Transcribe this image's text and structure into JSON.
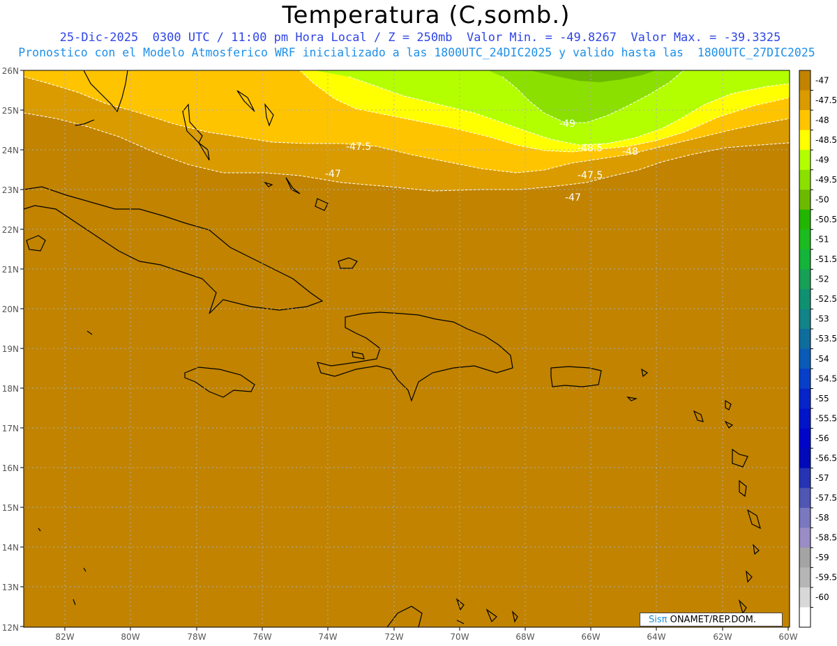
{
  "title": "Temperatura (C,somb.)",
  "subtitle_line1": "25-Dic-2025  0300 UTC / 11:00 pm Hora Local / Z = 250mb  Valor Min. = -49.8267  Valor Max. = -39.3325",
  "subtitle_line2": "Pronostico con el Modelo Atmosferico WRF inicializado a las 1800UTC_24DIC2025 y valido hasta las  1800UTC_27DIC2025",
  "map": {
    "lon_range": [
      -83,
      -60
    ],
    "lat_range": [
      12,
      26
    ],
    "lon_ticks": [
      "82W",
      "80W",
      "78W",
      "76W",
      "74W",
      "72W",
      "70W",
      "68W",
      "66W",
      "64W",
      "62W",
      "60W"
    ],
    "lat_ticks": [
      "12N",
      "13N",
      "14N",
      "15N",
      "16N",
      "17N",
      "18N",
      "19N",
      "20N",
      "21N",
      "22N",
      "23N",
      "24N",
      "25N",
      "26N"
    ],
    "contour_labels": [
      "-47.5",
      "-47",
      "-49",
      "-48.5",
      "-48",
      "-47.5",
      "-47"
    ]
  },
  "legend": {
    "labels": [
      "-47",
      "-47.5",
      "-48",
      "-48.5",
      "-49",
      "-49.5",
      "-50",
      "-50.5",
      "-51",
      "-51.5",
      "-52",
      "-52.5",
      "-53",
      "-53.5",
      "-54",
      "-54.5",
      "-55",
      "-55.5",
      "-56",
      "-56.5",
      "-57",
      "-57.5",
      "-58",
      "-58.5",
      "-59",
      "-59.5",
      "-60"
    ],
    "colors": [
      "#c18300",
      "#d99b00",
      "#ffc400",
      "#ffff00",
      "#b3ff00",
      "#8be000",
      "#6cba00",
      "#22b600",
      "#1cbb1f",
      "#14b33a",
      "#16a156",
      "#0f9171",
      "#128388",
      "#0f6d9e",
      "#0a5bb6",
      "#063fc8",
      "#0624c8",
      "#0015c8",
      "#0006c8",
      "#000ab8",
      "#2633b3",
      "#4f56b4",
      "#7a78c0",
      "#9a8cc4",
      "#a4a4a4",
      "#b6b6b6",
      "#d8d8d8",
      "#ffffff"
    ]
  },
  "credit": {
    "logo": "Sisπ",
    "text": " ONAMET/REP.DOM."
  }
}
